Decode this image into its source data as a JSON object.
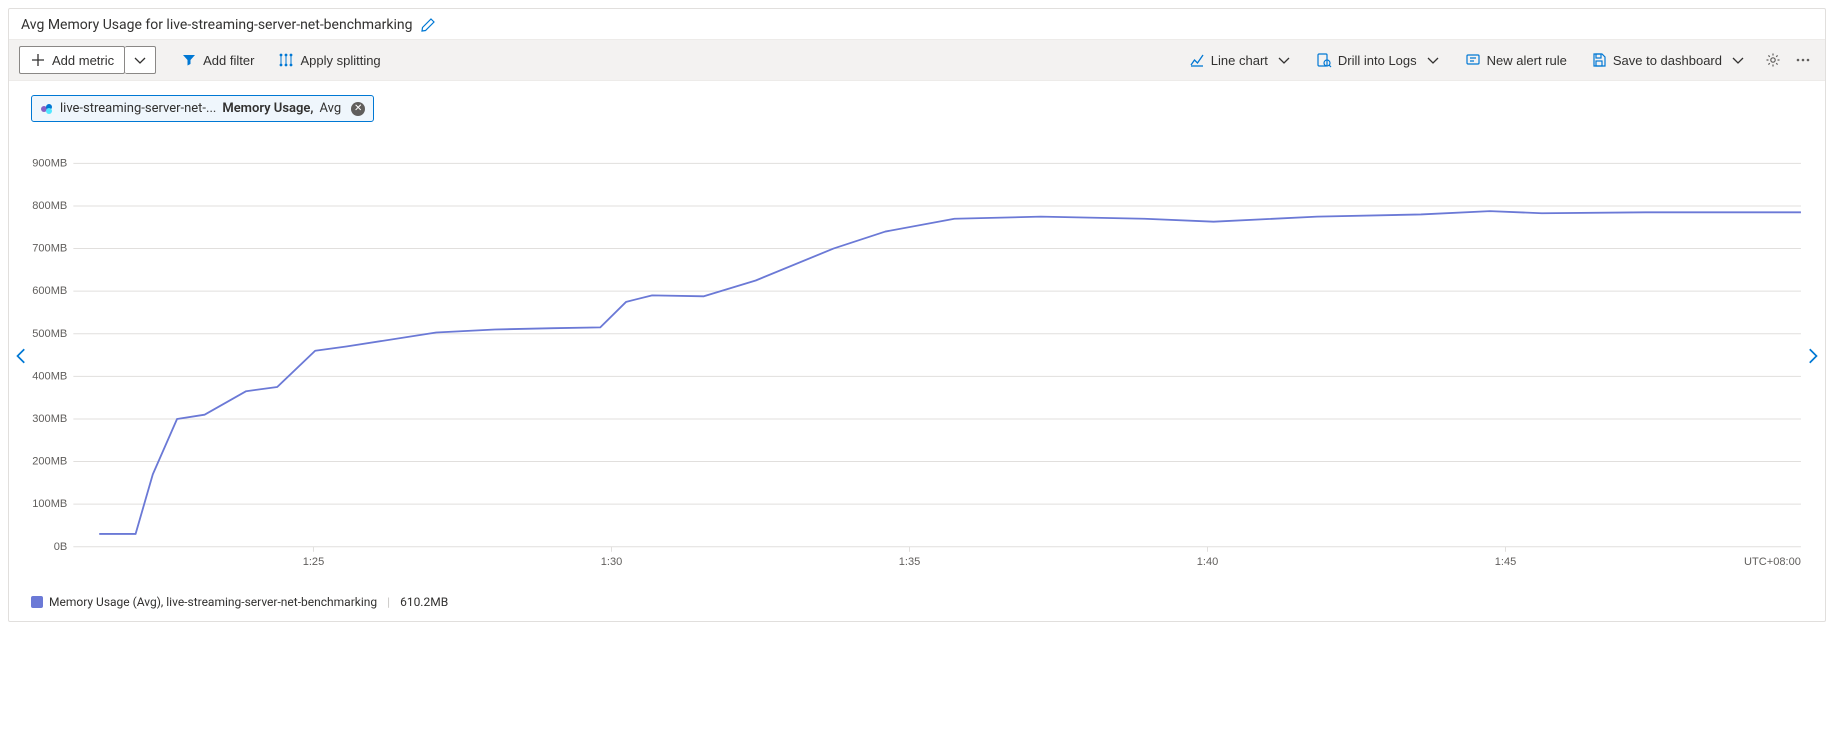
{
  "header": {
    "title": "Avg Memory Usage for live-streaming-server-net-benchmarking"
  },
  "toolbar": {
    "add_metric": "Add metric",
    "add_filter": "Add filter",
    "apply_splitting": "Apply splitting",
    "line_chart": "Line chart",
    "drill_logs": "Drill into Logs",
    "new_alert": "New alert rule",
    "save_dashboard": "Save to dashboard"
  },
  "pill": {
    "resource": "live-streaming-server-net-...",
    "metric": "Memory Usage,",
    "agg": "Avg"
  },
  "chart": {
    "type": "line",
    "line_color": "#6b79d6",
    "grid_color": "#e1dfdd",
    "axis_text_color": "#605e5c",
    "axis_font_size": 11,
    "background_color": "#ffffff",
    "ylim": [
      0,
      950
    ],
    "y_ticks": [
      0,
      100,
      200,
      300,
      400,
      500,
      600,
      700,
      800,
      900
    ],
    "y_tick_labels": [
      "0B",
      "100MB",
      "200MB",
      "300MB",
      "400MB",
      "500MB",
      "600MB",
      "700MB",
      "800MB",
      "900MB"
    ],
    "x_ticks_rel": [
      0.139,
      0.3115,
      0.484,
      0.6565,
      0.829
    ],
    "x_tick_labels": [
      "1:25",
      "1:30",
      "1:35",
      "1:40",
      "1:45"
    ],
    "timezone": "UTC+08:00",
    "points": [
      {
        "x": 0.015,
        "y": 30
      },
      {
        "x": 0.036,
        "y": 30
      },
      {
        "x": 0.046,
        "y": 170
      },
      {
        "x": 0.06,
        "y": 300
      },
      {
        "x": 0.076,
        "y": 310
      },
      {
        "x": 0.1,
        "y": 365
      },
      {
        "x": 0.118,
        "y": 375
      },
      {
        "x": 0.14,
        "y": 460
      },
      {
        "x": 0.158,
        "y": 470
      },
      {
        "x": 0.21,
        "y": 503
      },
      {
        "x": 0.244,
        "y": 510
      },
      {
        "x": 0.278,
        "y": 513
      },
      {
        "x": 0.305,
        "y": 515
      },
      {
        "x": 0.32,
        "y": 575
      },
      {
        "x": 0.335,
        "y": 590
      },
      {
        "x": 0.365,
        "y": 588
      },
      {
        "x": 0.395,
        "y": 625
      },
      {
        "x": 0.44,
        "y": 700
      },
      {
        "x": 0.47,
        "y": 740
      },
      {
        "x": 0.51,
        "y": 770
      },
      {
        "x": 0.56,
        "y": 775
      },
      {
        "x": 0.62,
        "y": 770
      },
      {
        "x": 0.66,
        "y": 763
      },
      {
        "x": 0.72,
        "y": 775
      },
      {
        "x": 0.78,
        "y": 780
      },
      {
        "x": 0.82,
        "y": 788
      },
      {
        "x": 0.85,
        "y": 783
      },
      {
        "x": 0.91,
        "y": 785
      },
      {
        "x": 0.97,
        "y": 785
      },
      {
        "x": 1.0,
        "y": 785
      }
    ]
  },
  "legend": {
    "swatch_color": "#6b79d6",
    "label": "Memory Usage (Avg), live-streaming-server-net-benchmarking",
    "value": "610.2MB"
  }
}
